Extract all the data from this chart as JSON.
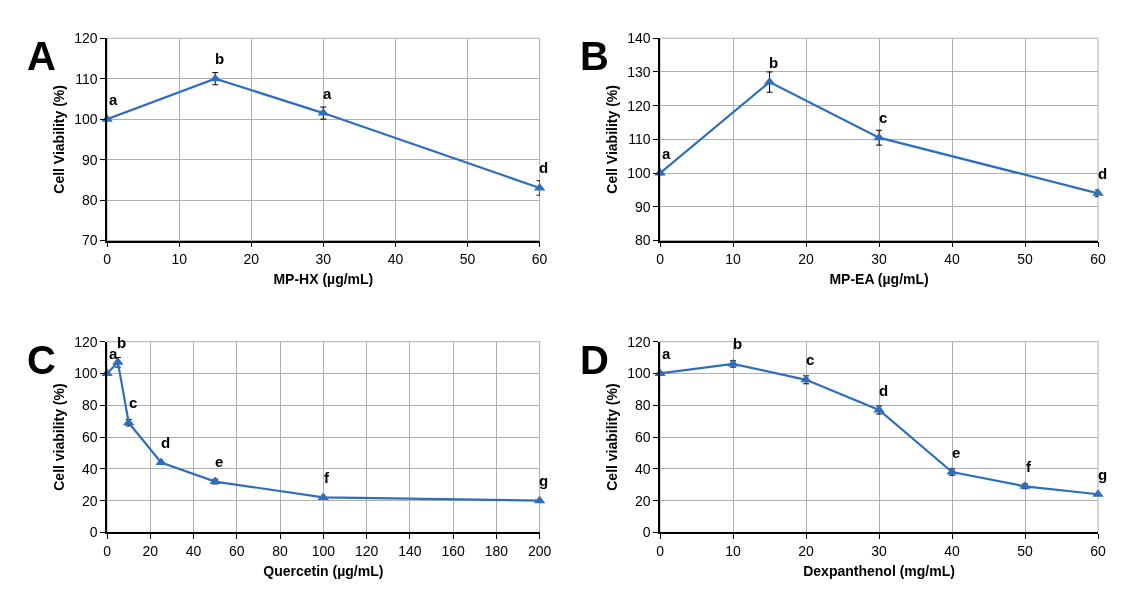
{
  "chart_data": [
    {
      "type": "line",
      "xlabel": "MP-HX (µg/mL)",
      "ylabel": "Cell Viability (%)",
      "x": [
        0,
        15,
        30,
        60
      ],
      "xlim": [
        0,
        60
      ],
      "xticks": [
        0,
        10,
        20,
        30,
        40,
        50,
        60
      ],
      "ylim": [
        70,
        120
      ],
      "yticks": [
        70,
        80,
        90,
        100,
        110,
        120
      ],
      "grid": true,
      "marker": "triangle",
      "line_style": "solid",
      "series": [
        {
          "color": "#2e6ebd",
          "values": [
            100,
            110,
            101.5,
            83
          ],
          "errors": [
            null,
            1.5,
            1.5,
            1.8
          ]
        }
      ],
      "annotations": [
        "A",
        {
          "text": "a",
          "x": 0,
          "y": 100
        },
        {
          "text": "b",
          "x": 15,
          "y": 110
        },
        {
          "text": "a",
          "x": 30,
          "y": 101.5
        },
        {
          "text": "d",
          "x": 60,
          "y": 83
        }
      ]
    },
    {
      "type": "line",
      "xlabel": "MP-EA (µg/mL)",
      "ylabel": "Cell Viability (%)",
      "x": [
        0,
        15,
        30,
        60
      ],
      "xlim": [
        0,
        60
      ],
      "xticks": [
        0,
        10,
        20,
        30,
        40,
        50,
        60
      ],
      "ylim": [
        80,
        140
      ],
      "yticks": [
        80,
        90,
        100,
        110,
        120,
        130,
        140
      ],
      "grid": true,
      "marker": "triangle",
      "line_style": "solid",
      "series": [
        {
          "color": "#2e6ebd",
          "values": [
            100,
            127,
            110.5,
            94
          ],
          "errors": [
            0.5,
            3,
            2.2,
            1
          ]
        }
      ],
      "annotations": [
        "B",
        {
          "text": "a",
          "x": 0,
          "y": 100
        },
        {
          "text": "b",
          "x": 15,
          "y": 127
        },
        {
          "text": "c",
          "x": 30,
          "y": 110.5
        },
        {
          "text": "d",
          "x": 60,
          "y": 94
        }
      ]
    },
    {
      "type": "line",
      "xlabel": "Quercetin (µg/mL)",
      "ylabel": "Cell viability (%)",
      "x": [
        0,
        5,
        10,
        25,
        50,
        100,
        200
      ],
      "xlim": [
        0,
        200
      ],
      "xticks": [
        0,
        20,
        40,
        60,
        80,
        100,
        120,
        140,
        160,
        180,
        200
      ],
      "ylim": [
        0,
        120
      ],
      "yticks": [
        0,
        20,
        40,
        60,
        80,
        100,
        120
      ],
      "grid": true,
      "marker": "triangle",
      "line_style": "solid",
      "series": [
        {
          "color": "#2e6ebd",
          "values": [
            100,
            107,
            69,
            44,
            32,
            22,
            20
          ],
          "errors": [
            1,
            3,
            2,
            null,
            1.5,
            null,
            null
          ]
        }
      ],
      "annotations": [
        "C",
        {
          "text": "a",
          "x": 0,
          "y": 100
        },
        {
          "text": "b",
          "x": 5,
          "y": 107
        },
        {
          "text": "c",
          "x": 10,
          "y": 69
        },
        {
          "text": "d",
          "x": 25,
          "y": 44
        },
        {
          "text": "e",
          "x": 50,
          "y": 32
        },
        {
          "text": "f",
          "x": 100,
          "y": 22
        },
        {
          "text": "g",
          "x": 200,
          "y": 20
        }
      ]
    },
    {
      "type": "line",
      "xlabel": "Dexpanthenol (mg/mL)",
      "ylabel": "Cell viability (%)",
      "x": [
        0,
        10,
        20,
        30,
        40,
        50,
        60
      ],
      "xlim": [
        0,
        60
      ],
      "xticks": [
        0,
        10,
        20,
        30,
        40,
        50,
        60
      ],
      "ylim": [
        0,
        120
      ],
      "yticks": [
        0,
        20,
        40,
        60,
        80,
        100,
        120
      ],
      "grid": true,
      "marker": "triangle",
      "line_style": "solid",
      "series": [
        {
          "color": "#2e6ebd",
          "values": [
            100,
            106,
            96,
            77,
            38,
            29,
            24
          ],
          "errors": [
            1,
            2,
            2.5,
            2.5,
            2,
            1.5,
            null
          ]
        }
      ],
      "annotations": [
        "D",
        {
          "text": "a",
          "x": 0,
          "y": 100
        },
        {
          "text": "b",
          "x": 10,
          "y": 106
        },
        {
          "text": "c",
          "x": 20,
          "y": 96
        },
        {
          "text": "d",
          "x": 30,
          "y": 77
        },
        {
          "text": "e",
          "x": 40,
          "y": 38
        },
        {
          "text": "f",
          "x": 50,
          "y": 29
        },
        {
          "text": "g",
          "x": 60,
          "y": 24
        }
      ]
    }
  ]
}
